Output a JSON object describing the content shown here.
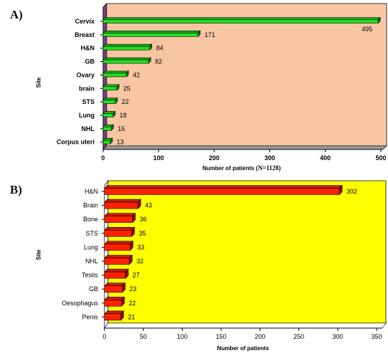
{
  "panels": [
    {
      "letter": "A)"
    },
    {
      "letter": "B)"
    }
  ],
  "colors": {
    "panelA_bg": "#f8c6a3",
    "panelA_wall": "#7b3f8a",
    "panelA_bar": "#22e022",
    "panelB_bg": "#ffff00",
    "panelB_bar": "#ff2200"
  },
  "chart_data": [
    {
      "type": "bar",
      "orientation": "horizontal",
      "categories": [
        "Cervix",
        "Breast",
        "H&N",
        "GB",
        "Ovary",
        "brain",
        "STS",
        "Lung",
        "NHL",
        "Corpus uteri"
      ],
      "values": [
        495,
        171,
        84,
        82,
        42,
        25,
        22,
        18,
        15,
        13
      ],
      "xlabel": "Number of patients",
      "xlabel_suffix": "(N=1128)",
      "ylabel": "Site",
      "xlim": [
        0,
        500
      ],
      "xticks": [
        "0",
        "100",
        "200",
        "300",
        "400",
        "500"
      ]
    },
    {
      "type": "bar",
      "orientation": "horizontal",
      "categories": [
        "H&N",
        "Brain",
        "Bone",
        "STS",
        "Lung",
        "NHL",
        "Testis",
        "GB",
        "Oesophagus",
        "Penis"
      ],
      "values": [
        302,
        43,
        36,
        35,
        33,
        32,
        27,
        23,
        22,
        21
      ],
      "xlabel": "Number of patients",
      "ylabel": "Site",
      "xlim": [
        0,
        350
      ],
      "xticks": [
        "0",
        "50",
        "100",
        "150",
        "200",
        "250",
        "300",
        "350"
      ]
    }
  ]
}
